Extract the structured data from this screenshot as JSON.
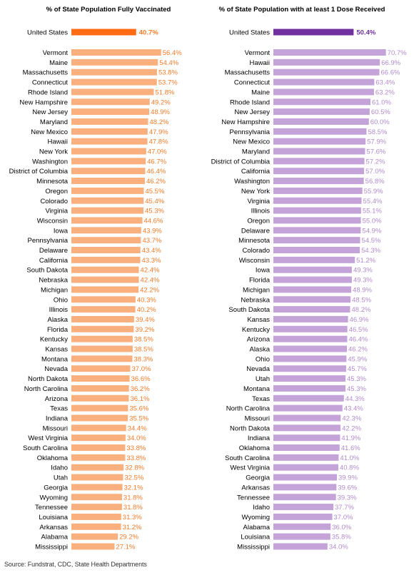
{
  "chart_data": [
    {
      "type": "bar",
      "orientation": "horizontal",
      "title": "% of State Population Fully Vaccinated",
      "highlight": {
        "category": "United States",
        "value": 40.7,
        "label": "40.7%"
      },
      "categories": [
        "Vermont",
        "Maine",
        "Massachusetts",
        "Connecticut",
        "Rhode Island",
        "New Hampshire",
        "New Jersey",
        "Maryland",
        "New Mexico",
        "Hawaii",
        "New York",
        "Washington",
        "District of Columbia",
        "Minnesota",
        "Oregon",
        "Colorado",
        "Virginia",
        "Wisconsin",
        "Iowa",
        "Pennsylvania",
        "Delaware",
        "California",
        "South Dakota",
        "Nebraska",
        "Michigan",
        "Ohio",
        "Illinois",
        "Alaska",
        "Florida",
        "Kentucky",
        "Kansas",
        "Montana",
        "Nevada",
        "North Dakota",
        "North Carolina",
        "Arizona",
        "Texas",
        "Indiana",
        "Missouri",
        "West Virginia",
        "South Carolina",
        "Oklahoma",
        "Idaho",
        "Utah",
        "Georgia",
        "Wyoming",
        "Tennessee",
        "Louisiana",
        "Arkansas",
        "Alabama",
        "Mississippi"
      ],
      "values": [
        56.4,
        54.4,
        53.8,
        53.7,
        51.8,
        49.2,
        48.9,
        48.2,
        47.9,
        47.8,
        47.0,
        46.7,
        46.4,
        46.2,
        45.5,
        45.4,
        45.3,
        44.6,
        43.9,
        43.7,
        43.4,
        43.3,
        42.4,
        42.4,
        42.2,
        40.3,
        40.2,
        39.4,
        39.2,
        38.5,
        38.5,
        38.3,
        37.0,
        36.6,
        36.2,
        36.1,
        35.6,
        35.5,
        34.4,
        34.0,
        33.8,
        33.8,
        32.8,
        32.5,
        32.1,
        31.8,
        31.8,
        31.3,
        31.2,
        29.2,
        27.1
      ],
      "labels": [
        "56.4%",
        "54.4%",
        "53.8%",
        "53.7%",
        "51.8%",
        "49.2%",
        "48.9%",
        "48.2%",
        "47.9%",
        "47.8%",
        "47.0%",
        "46.7%",
        "46.4%",
        "46.2%",
        "45.5%",
        "45.4%",
        "45.3%",
        "44.6%",
        "43.9%",
        "43.7%",
        "43.4%",
        "43.3%",
        "42.4%",
        "42.4%",
        "42.2%",
        "40.3%",
        "40.2%",
        "39.4%",
        "39.2%",
        "38.5%",
        "38.5%",
        "38.3%",
        "37.0%",
        "36.6%",
        "36.2%",
        "36.1%",
        "35.6%",
        "35.5%",
        "34.4%",
        "34.0%",
        "33.8%",
        "33.8%",
        "32.8%",
        "32.5%",
        "32.1%",
        "31.8%",
        "31.8%",
        "31.3%",
        "31.2%",
        "29.2%",
        "27.1%"
      ],
      "colors": {
        "highlight": "#ff6a13",
        "bar": "#f9b07e",
        "label": "#f07c2a",
        "highlight_label": "#f07c2a"
      },
      "xlim": [
        0,
        80
      ]
    },
    {
      "type": "bar",
      "orientation": "horizontal",
      "title": "% of State Population with at least 1 Dose Received",
      "highlight": {
        "category": "United States",
        "value": 50.4,
        "label": "50.4%"
      },
      "categories": [
        "Vermont",
        "Hawaii",
        "Massachusetts",
        "Connecticut",
        "Maine",
        "Rhode Island",
        "New Jersey",
        "New Hampshire",
        "Pennsylvania",
        "New Mexico",
        "Maryland",
        "District of Columbia",
        "California",
        "Washington",
        "New York",
        "Virginia",
        "Illinois",
        "Oregon",
        "Delaware",
        "Minnesota",
        "Colorado",
        "Wisconsin",
        "Iowa",
        "Florida",
        "Michigan",
        "Nebraska",
        "South Dakota",
        "Kansas",
        "Kentucky",
        "Arizona",
        "Alaska",
        "Ohio",
        "Nevada",
        "Utah",
        "Montana",
        "Texas",
        "North Carolina",
        "Missouri",
        "North Dakota",
        "Indiana",
        "Oklahoma",
        "South Carolina",
        "West Virginia",
        "Georgia",
        "Arkansas",
        "Tennessee",
        "Idaho",
        "Wyoming",
        "Alabama",
        "Louisiana",
        "Mississippi"
      ],
      "values": [
        70.7,
        66.9,
        66.6,
        63.4,
        63.2,
        61.0,
        60.5,
        60.0,
        58.5,
        57.9,
        57.6,
        57.2,
        57.0,
        56.8,
        55.9,
        55.4,
        55.1,
        55.0,
        54.9,
        54.5,
        54.3,
        51.2,
        49.3,
        49.3,
        48.9,
        48.5,
        48.2,
        46.9,
        46.5,
        46.4,
        46.2,
        45.9,
        45.7,
        45.3,
        45.3,
        44.3,
        43.4,
        42.3,
        42.2,
        41.9,
        41.6,
        41.0,
        40.8,
        39.9,
        39.6,
        39.3,
        37.7,
        37.0,
        36.0,
        35.8,
        34.0
      ],
      "labels": [
        "70.7%",
        "66.9%",
        "66.6%",
        "63.4%",
        "63.2%",
        "61.0%",
        "60.5%",
        "60.0%",
        "58.5%",
        "57.9%",
        "57.6%",
        "57.2%",
        "57.0%",
        "56.8%",
        "55.9%",
        "55.4%",
        "55.1%",
        "55.0%",
        "54.9%",
        "54.5%",
        "54.3%",
        "51.2%",
        "49.3%",
        "49.3%",
        "48.9%",
        "48.5%",
        "48.2%",
        "46.9%",
        "46.5%",
        "46.4%",
        "46.2%",
        "45.9%",
        "45.7%",
        "45.3%",
        "45.3%",
        "44.3%",
        "43.4%",
        "42.3%",
        "42.2%",
        "41.9%",
        "41.6%",
        "41.0%",
        "40.8%",
        "39.9%",
        "39.6%",
        "39.3%",
        "37.7%",
        "37.0%",
        "36.0%",
        "35.8%",
        "34.0%"
      ],
      "colors": {
        "highlight": "#7030a0",
        "bar": "#c4a3d9",
        "label": "#b08ccc",
        "highlight_label": "#7030a0"
      },
      "xlim": [
        0,
        80
      ]
    }
  ],
  "footer": {
    "source": "Source: Fundstrat, CDC, State Health Departments"
  }
}
